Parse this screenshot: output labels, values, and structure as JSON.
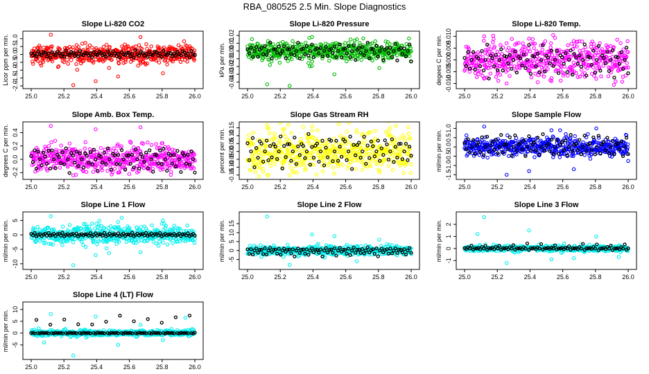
{
  "page_title": "RBA_080525  2.5 Min. Slope Diagnostics",
  "chart_data": [
    {
      "type": "scatter",
      "title": "Slope Li-820 CO2",
      "ylabel": "Licor ppm per min.",
      "color": "#ff0000",
      "xlim": [
        25.0,
        26.0
      ],
      "ylim": [
        -2.0,
        1.3
      ],
      "xticks": [
        "25.0",
        "25.2",
        "25.4",
        "25.6",
        "25.8",
        "26.0"
      ],
      "yticks": [
        "-2.0",
        "-1.5",
        "-1.0",
        "-0.5",
        "0.0",
        "0.5",
        "1.0"
      ],
      "spread": 0.28,
      "background_values": [
        1.25,
        -1.95,
        -1.7,
        -1.4,
        1.1,
        -1.2
      ],
      "reference_values": [
        0.1,
        -0.1,
        0.05,
        -0.15,
        0.2,
        0.0,
        -0.05,
        0.15
      ]
    },
    {
      "type": "scatter",
      "title": "Slope Li-820 Pressure",
      "ylabel": "kPa per min.",
      "color": "#00bb00",
      "xlim": [
        25.0,
        26.0
      ],
      "ylim": [
        -0.045,
        0.022
      ],
      "xticks": [
        "25.0",
        "25.2",
        "25.4",
        "25.6",
        "25.8",
        "26.0"
      ],
      "yticks": [
        "-0.04",
        "-0.03",
        "-0.02",
        "-0.01",
        "0.00",
        "0.01",
        "0.02"
      ],
      "spread": 0.006,
      "background_values": [
        -0.043,
        -0.045,
        0.018,
        -0.03,
        0.015,
        -0.022
      ],
      "reference_values": [
        0.003,
        -0.003,
        0.005,
        -0.006,
        0.0,
        0.008,
        -0.01,
        0.002
      ]
    },
    {
      "type": "scatter",
      "title": "Slope Li-820 Temp.",
      "ylabel": "degees C per min.",
      "color": "#ff00ff",
      "xlim": [
        25.0,
        26.0
      ],
      "ylim": [
        -0.011,
        0.011
      ],
      "xticks": [
        "25.0",
        "25.2",
        "25.4",
        "25.6",
        "25.8",
        "26.0"
      ],
      "yticks": [
        "-0.010",
        "-0.005",
        "0.000",
        "0.005",
        "0.010"
      ],
      "spread": 0.004,
      "background_values": [
        0.01,
        -0.01,
        0.009,
        -0.009,
        0.008,
        -0.008
      ],
      "reference_values": [
        0.001,
        -0.002,
        0.003,
        -0.004,
        0.0,
        0.005,
        -0.006,
        0.002
      ]
    },
    {
      "type": "scatter",
      "title": "Slope Amb. Box Temp.",
      "ylabel": "degrees C per min.",
      "color": "#ff00ff",
      "xlim": [
        25.0,
        26.0
      ],
      "ylim": [
        -0.26,
        0.52
      ],
      "xticks": [
        "25.0",
        "25.2",
        "25.4",
        "25.6",
        "25.8",
        "26.0"
      ],
      "yticks": [
        "-0.2",
        "0.0",
        "0.2",
        "0.4"
      ],
      "spread": 0.1,
      "background_values": [
        0.5,
        -0.24,
        0.45,
        -0.2,
        0.48,
        -0.15
      ],
      "reference_values": [
        0.05,
        -0.05,
        0.1,
        -0.1,
        0.15,
        0.0,
        -0.15,
        0.08
      ]
    },
    {
      "type": "scatter",
      "title": "Slope Gas Stream RH",
      "ylabel": "percent per min.",
      "color": "#ffff00",
      "xlim": [
        25.0,
        26.0
      ],
      "ylim": [
        -0.16,
        0.17
      ],
      "xticks": [
        "25.0",
        "25.2",
        "25.4",
        "25.6",
        "25.8",
        "26.0"
      ],
      "yticks": [
        "-0.15",
        "-0.10",
        "-0.05",
        "0.00",
        "0.05",
        "0.10",
        "0.15"
      ],
      "spread": 0.07,
      "background_values": [
        0.15,
        -0.15,
        0.16,
        -0.14,
        0.12,
        -0.12
      ],
      "reference_values": [
        0.05,
        -0.05,
        0.0,
        0.08,
        -0.08,
        0.03,
        -0.03,
        0.06
      ]
    },
    {
      "type": "scatter",
      "title": "Slope Sample Flow",
      "ylabel": "ml/min per min.",
      "color": "#0000ff",
      "xlim": [
        25.0,
        26.0
      ],
      "ylim": [
        -1.6,
        1.2
      ],
      "xticks": [
        "25.0",
        "25.2",
        "25.4",
        "25.6",
        "25.8",
        "26.0"
      ],
      "yticks": [
        "-1.5",
        "-1.0",
        "-0.5",
        "0.0",
        "0.5",
        "1.0"
      ],
      "spread": 0.25,
      "background_values": [
        1.1,
        -1.5,
        -1.3,
        0.9,
        -1.2,
        1.0
      ],
      "reference_values": [
        0.2,
        -0.2,
        0.4,
        -0.4,
        0.0,
        0.5,
        -0.3,
        0.1
      ]
    },
    {
      "type": "scatter",
      "title": "Slope Line 1 Flow",
      "ylabel": "ml/min per min.",
      "color": "#00eeee",
      "xlim": [
        25.0,
        26.0
      ],
      "ylim": [
        -11,
        7
      ],
      "xticks": [
        "25.0",
        "25.2",
        "25.4",
        "25.6",
        "25.8",
        "26.0"
      ],
      "yticks": [
        "-10",
        "-5",
        "0",
        "5"
      ],
      "spread": 1.5,
      "background_values": [
        6.5,
        -10.5,
        -7,
        4.5,
        -6,
        5
      ],
      "reference_values": [
        0.3,
        -0.2,
        0.5,
        -0.4,
        0.0,
        0.4,
        -0.3,
        0.2
      ]
    },
    {
      "type": "scatter",
      "title": "Slope Line 2 Flow",
      "ylabel": "ml/min per min.",
      "color": "#00eeee",
      "xlim": [
        25.0,
        26.0
      ],
      "ylim": [
        -9,
        20
      ],
      "xticks": [
        "25.0",
        "25.2",
        "25.4",
        "25.6",
        "25.8",
        "26.0"
      ],
      "yticks": [
        "-5",
        "0",
        "5",
        "10",
        "15"
      ],
      "spread": 1.3,
      "background_values": [
        19,
        -8,
        9,
        8,
        -6,
        6
      ],
      "reference_values": [
        0.5,
        -1.5,
        1.0,
        -2.5,
        0.0,
        1.5,
        -1.0,
        0.3
      ]
    },
    {
      "type": "scatter",
      "title": "Slope Line 3 Flow",
      "ylabel": "ml/min per min.",
      "color": "#00eeee",
      "xlim": [
        25.0,
        26.0
      ],
      "ylim": [
        -1.5,
        2.8
      ],
      "xticks": [
        "25.0",
        "25.2",
        "25.4",
        "25.6",
        "25.8",
        "26.0"
      ],
      "yticks": [
        "-1",
        "0",
        "1",
        "2"
      ],
      "spread": 0.12,
      "background_values": [
        2.6,
        -1.2,
        1.5,
        -0.9,
        -0.8,
        1.0,
        -0.7,
        1.2
      ],
      "reference_values": [
        0.05,
        -0.05,
        0.1,
        0.0,
        0.3,
        -0.1,
        0.02,
        0.0
      ]
    },
    {
      "type": "scatter",
      "title": "Slope Line 4 (LT) Flow",
      "ylabel": "ml/min per min.",
      "color": "#00eeee",
      "xlim": [
        25.0,
        26.0
      ],
      "ylim": [
        -10,
        12
      ],
      "xticks": [
        "25.0",
        "25.2",
        "25.4",
        "25.6",
        "25.8",
        "26.0"
      ],
      "yticks": [
        "-5",
        "0",
        "5",
        "10"
      ],
      "spread": 0.6,
      "background_values": [
        8,
        -9.5,
        7,
        -5,
        3.5,
        -3,
        6.5,
        -4
      ],
      "reference_values": [
        0.0,
        0.1,
        -0.1,
        5.5,
        0.0,
        -0.2,
        0.2,
        0.0
      ]
    }
  ]
}
